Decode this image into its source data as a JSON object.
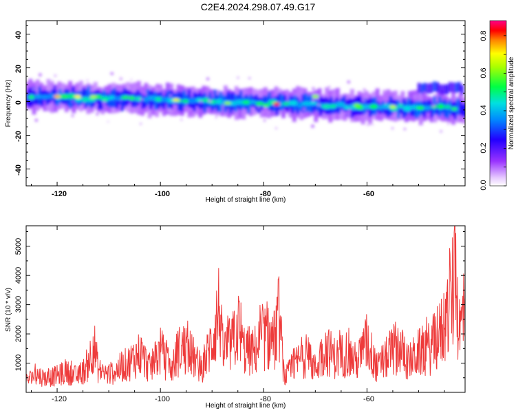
{
  "title": "C2E4.2024.298.07.49.G17",
  "colors": {
    "snr_line": "#ee3b3b",
    "frame": "#000000",
    "background": "#ffffff"
  },
  "chart_data": [
    {
      "type": "heatmap",
      "xlabel": "Height of straight line (km)",
      "ylabel": "Frequency (Hz)",
      "xlim": [
        -126,
        -41
      ],
      "ylim": [
        -50,
        48
      ],
      "xticks": [
        "-120",
        "-100",
        "-80",
        "-60"
      ],
      "yticks": [
        "40",
        "20",
        "0",
        "-20",
        "-40"
      ],
      "colorbar": {
        "label": "Normalized spectral amplitude",
        "range": [
          0,
          0.88
        ],
        "ticks": [
          "0.0",
          "0.2",
          "0.4",
          "0.6",
          "0.8"
        ]
      },
      "band": {
        "description_center_freq_at_x": [
          [
            -126,
            3
          ],
          [
            -100,
            1
          ],
          [
            -80,
            -1
          ],
          [
            -60,
            -3
          ],
          [
            -41,
            -4
          ]
        ],
        "upper_branch_from_x": -50,
        "upper_branch_freq": 8
      }
    },
    {
      "type": "line",
      "xlabel": "Height of straight line (km)",
      "ylabel": "SNR (10 * v/v)",
      "xlim": [
        -126,
        -41
      ],
      "ylim": [
        0,
        5700
      ],
      "xticks": [
        "-120",
        "-100",
        "-80",
        "-60"
      ],
      "yticks": [
        "1000",
        "2000",
        "3000",
        "4000",
        "5000"
      ],
      "series": [
        {
          "x": [
            -126,
            -124,
            -122,
            -120,
            -118,
            -116,
            -114,
            -113,
            -112,
            -110,
            -108,
            -106,
            -104,
            -102,
            -100,
            -98,
            -96,
            -94,
            -92,
            -90,
            -88.5,
            -88,
            -86,
            -85,
            -84,
            -82,
            -80,
            -78,
            -77,
            -76,
            -74,
            -72,
            -70,
            -68,
            -66,
            -64,
            -62,
            -60,
            -58,
            -56,
            -54,
            -52,
            -50,
            -48,
            -46,
            -44,
            -43,
            -42,
            -41
          ],
          "y": [
            600,
            900,
            700,
            850,
            1000,
            800,
            1300,
            2600,
            1100,
            900,
            1200,
            1500,
            2000,
            1200,
            2100,
            1100,
            2300,
            1900,
            1100,
            2600,
            4400,
            2000,
            2500,
            3400,
            2200,
            2000,
            2800,
            2600,
            3800,
            700,
            1400,
            1900,
            1200,
            2200,
            1700,
            2000,
            1500,
            2500,
            1200,
            1800,
            2400,
            1500,
            2000,
            2200,
            2800,
            4200,
            5700,
            3000,
            4500
          ]
        }
      ]
    }
  ]
}
